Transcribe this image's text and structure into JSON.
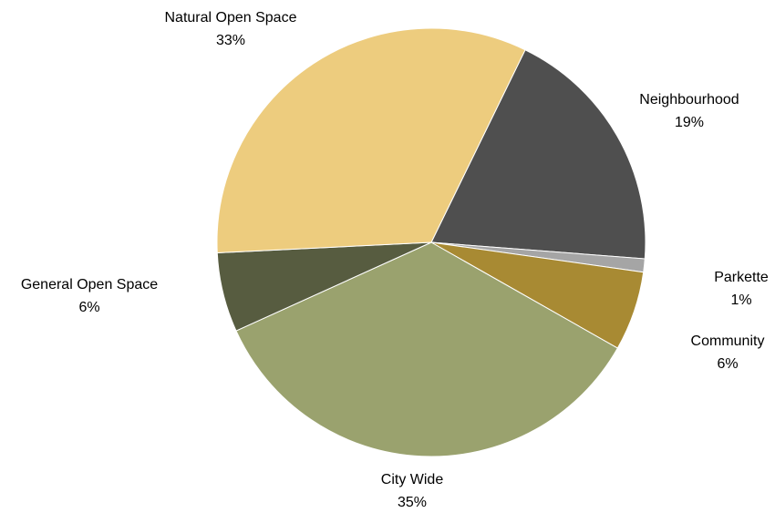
{
  "chart_data": {
    "type": "pie",
    "categories": [
      "Neighbourhood",
      "Parkette",
      "Community",
      "City Wide",
      "General Open Space",
      "Natural Open Space"
    ],
    "values": [
      19,
      1,
      6,
      35,
      6,
      33
    ],
    "value_labels": [
      "19%",
      "1%",
      "6%",
      "35%",
      "6%",
      "33%"
    ],
    "colors": [
      "#4f4f4f",
      "#a5a5a5",
      "#a88a33",
      "#9aa26e",
      "#575c40",
      "#edcc7e"
    ]
  }
}
